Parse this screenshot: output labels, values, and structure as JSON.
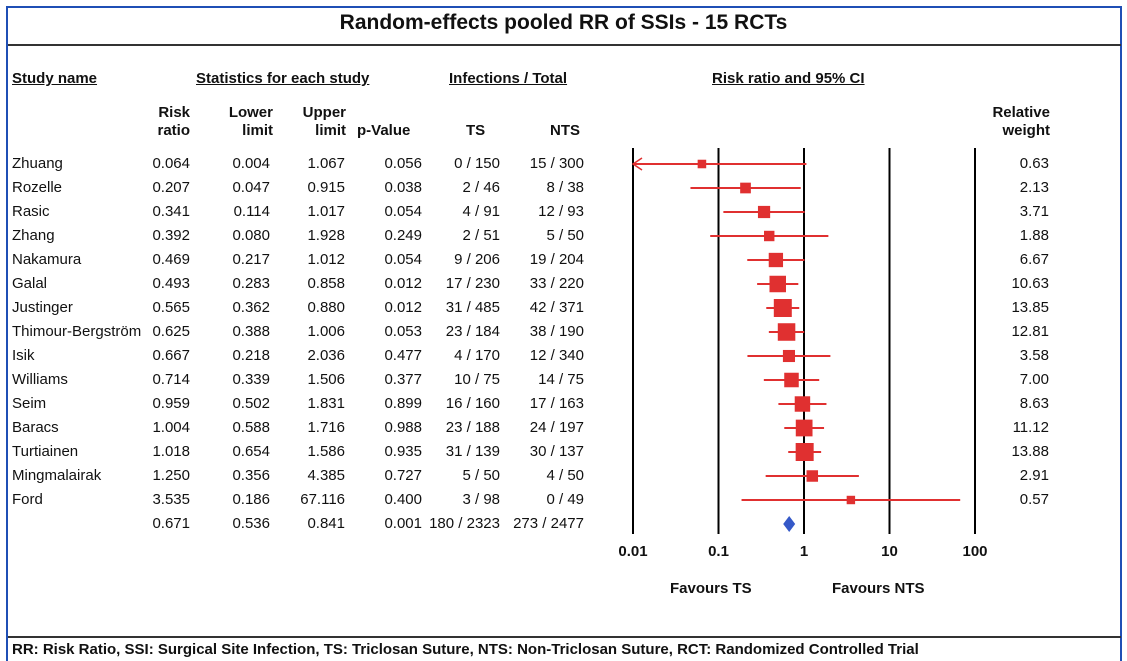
{
  "title": "Random-effects pooled RR of SSIs - 15 RCTs",
  "headers": {
    "study_name": "Study name",
    "statistics": "Statistics for each study",
    "infections": "Infections / Total",
    "ci": "Risk ratio and 95% CI"
  },
  "subheaders": {
    "risk": "Risk",
    "ratio": "ratio",
    "lower": "Lower",
    "limit_l": "limit",
    "upper": "Upper",
    "limit_u": "limit",
    "pvalue": "p-Value",
    "ts": "TS",
    "nts": "NTS",
    "relative": "Relative",
    "weight": "weight"
  },
  "chart_data": {
    "type": "forest",
    "x_scale": "log",
    "xlim": [
      0.01,
      100
    ],
    "x_ticks": [
      "0.01",
      "0.1",
      "1",
      "10",
      "100"
    ],
    "x_tick_values": [
      0.01,
      0.1,
      1,
      10,
      100
    ],
    "favours_left": "Favours TS",
    "favours_right": "Favours NTS",
    "marker_color": "#e03030",
    "summary_color": "#3559c8",
    "studies": [
      {
        "name": "Zhuang",
        "rr": "0.064",
        "lower": "0.004",
        "upper": "1.067",
        "p": "0.056",
        "ts": "0 / 150",
        "nts": "15 / 300",
        "weight": "0.63"
      },
      {
        "name": "Rozelle",
        "rr": "0.207",
        "lower": "0.047",
        "upper": "0.915",
        "p": "0.038",
        "ts": "2 / 46",
        "nts": "8 / 38",
        "weight": "2.13"
      },
      {
        "name": "Rasic",
        "rr": "0.341",
        "lower": "0.114",
        "upper": "1.017",
        "p": "0.054",
        "ts": "4 / 91",
        "nts": "12 / 93",
        "weight": "3.71"
      },
      {
        "name": "Zhang",
        "rr": "0.392",
        "lower": "0.080",
        "upper": "1.928",
        "p": "0.249",
        "ts": "2 / 51",
        "nts": "5 / 50",
        "weight": "1.88"
      },
      {
        "name": "Nakamura",
        "rr": "0.469",
        "lower": "0.217",
        "upper": "1.012",
        "p": "0.054",
        "ts": "9 / 206",
        "nts": "19 / 204",
        "weight": "6.67"
      },
      {
        "name": "Galal",
        "rr": "0.493",
        "lower": "0.283",
        "upper": "0.858",
        "p": "0.012",
        "ts": "17 / 230",
        "nts": "33 / 220",
        "weight": "10.63"
      },
      {
        "name": "Justinger",
        "rr": "0.565",
        "lower": "0.362",
        "upper": "0.880",
        "p": "0.012",
        "ts": "31 / 485",
        "nts": "42 / 371",
        "weight": "13.85"
      },
      {
        "name": "Thimour-Bergström",
        "rr": "0.625",
        "lower": "0.388",
        "upper": "1.006",
        "p": "0.053",
        "ts": "23 / 184",
        "nts": "38 / 190",
        "weight": "12.81"
      },
      {
        "name": "Isik",
        "rr": "0.667",
        "lower": "0.218",
        "upper": "2.036",
        "p": "0.477",
        "ts": "4 / 170",
        "nts": "12 / 340",
        "weight": "3.58"
      },
      {
        "name": "Williams",
        "rr": "0.714",
        "lower": "0.339",
        "upper": "1.506",
        "p": "0.377",
        "ts": "10 / 75",
        "nts": "14 / 75",
        "weight": "7.00"
      },
      {
        "name": "Seim",
        "rr": "0.959",
        "lower": "0.502",
        "upper": "1.831",
        "p": "0.899",
        "ts": "16 / 160",
        "nts": "17 / 163",
        "weight": "8.63"
      },
      {
        "name": "Baracs",
        "rr": "1.004",
        "lower": "0.588",
        "upper": "1.716",
        "p": "0.988",
        "ts": "23 / 188",
        "nts": "24 / 197",
        "weight": "11.12"
      },
      {
        "name": "Turtiainen",
        "rr": "1.018",
        "lower": "0.654",
        "upper": "1.586",
        "p": "0.935",
        "ts": "31 / 139",
        "nts": "30 / 137",
        "weight": "13.88"
      },
      {
        "name": "Mingmalairak",
        "rr": "1.250",
        "lower": "0.356",
        "upper": "4.385",
        "p": "0.727",
        "ts": "5 / 50",
        "nts": "4 / 50",
        "weight": "2.91"
      },
      {
        "name": "Ford",
        "rr": "3.535",
        "lower": "0.186",
        "upper": "67.116",
        "p": "0.400",
        "ts": "3 / 98",
        "nts": "0 / 49",
        "weight": "0.57"
      }
    ],
    "summary": {
      "rr": "0.671",
      "lower": "0.536",
      "upper": "0.841",
      "p": "0.001",
      "ts": "180 / 2323",
      "nts": "273 / 2477"
    }
  },
  "footnote": "RR: Risk Ratio, SSI: Surgical Site Infection, TS: Triclosan Suture, NTS: Non-Triclosan Suture, RCT: Randomized Controlled Trial"
}
